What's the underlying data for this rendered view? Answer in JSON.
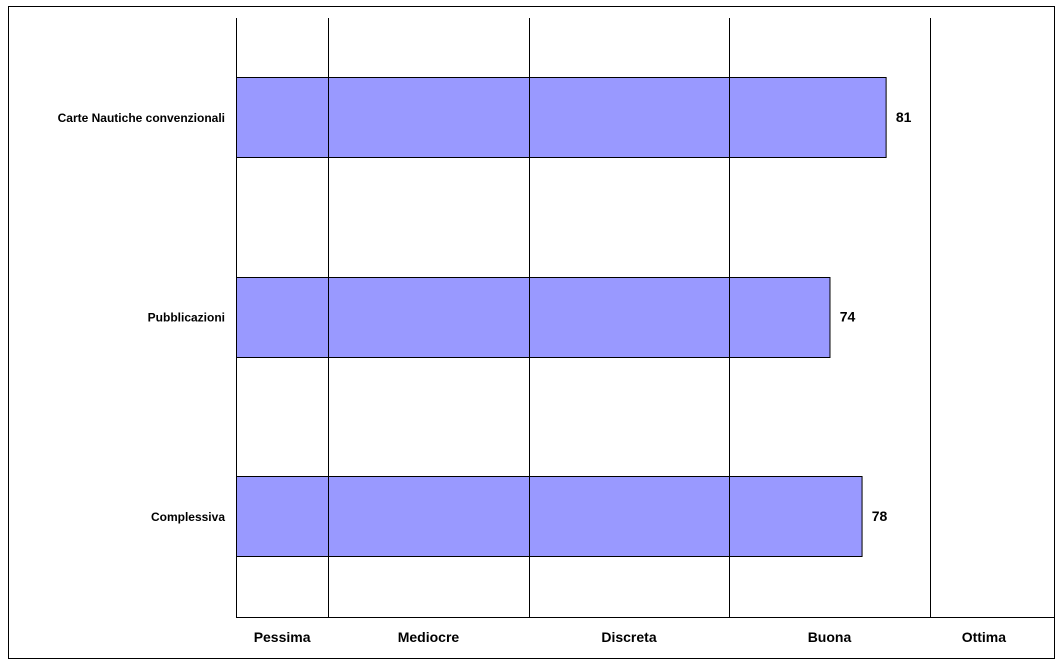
{
  "chart_data": {
    "type": "bar",
    "orientation": "horizontal",
    "categories": [
      "Carte Nautiche convenzionali",
      "Pubblicazioni",
      "Complessiva"
    ],
    "values": [
      81,
      74,
      78
    ],
    "bar_color": "#9999ff",
    "xlim": [
      0,
      100
    ],
    "x_bands": [
      {
        "label": "Pessima",
        "from": 0,
        "to": 11.5
      },
      {
        "label": "Mediocre",
        "from": 11.5,
        "to": 36.5
      },
      {
        "label": "Discreta",
        "from": 36.5,
        "to": 61.5
      },
      {
        "label": "Buona",
        "from": 61.5,
        "to": 86.5
      },
      {
        "label": "Ottima",
        "from": 86.5,
        "to": 100
      }
    ],
    "grid": true,
    "title": "",
    "xlabel": "",
    "ylabel": ""
  }
}
